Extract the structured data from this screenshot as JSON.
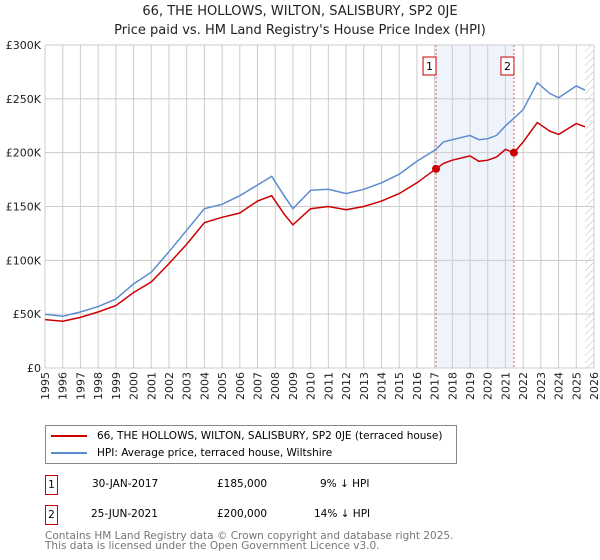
{
  "chart_data": {
    "type": "line",
    "title": "66, THE HOLLOWS, WILTON, SALISBURY, SP2 0JE",
    "subtitle": "Price paid vs. HM Land Registry's House Price Index (HPI)",
    "xlim": [
      1995,
      2026
    ],
    "ylim": [
      0,
      300000
    ],
    "x_ticks": [
      "1995",
      "1996",
      "1997",
      "1998",
      "1999",
      "2000",
      "2001",
      "2002",
      "2003",
      "2004",
      "2005",
      "2006",
      "2007",
      "2008",
      "2009",
      "2010",
      "2011",
      "2012",
      "2013",
      "2014",
      "2015",
      "2016",
      "2017",
      "2018",
      "2019",
      "2020",
      "2021",
      "2022",
      "2023",
      "2024",
      "2025",
      "2026"
    ],
    "y_ticks": [
      {
        "v": 0,
        "label": "£0"
      },
      {
        "v": 50000,
        "label": "£50K"
      },
      {
        "v": 100000,
        "label": "£100K"
      },
      {
        "v": 150000,
        "label": "£150K"
      },
      {
        "v": 200000,
        "label": "£200K"
      },
      {
        "v": 250000,
        "label": "£250K"
      },
      {
        "v": 300000,
        "label": "£300K"
      }
    ],
    "grid": true,
    "series": [
      {
        "name": "66, THE HOLLOWS, WILTON, SALISBURY, SP2 0JE (terraced house)",
        "color": "#cc0000",
        "x": [
          1995,
          1996,
          1997,
          1998,
          1999,
          2000,
          2001,
          2002,
          2003,
          2004,
          2005,
          2006,
          2007,
          2007.8,
          2008.5,
          2009,
          2010,
          2011,
          2012,
          2013,
          2014,
          2015,
          2016,
          2017.08,
          2017.5,
          2018,
          2019,
          2019.5,
          2020,
          2020.5,
          2021,
          2021.48,
          2022,
          2022.8,
          2023.5,
          2024,
          2025,
          2025.5
        ],
        "y": [
          45000,
          43500,
          47000,
          52000,
          58000,
          70000,
          80000,
          97000,
          115000,
          135000,
          140000,
          144000,
          155000,
          160000,
          143000,
          133000,
          148000,
          150000,
          147000,
          150000,
          155000,
          162000,
          172000,
          185000,
          190000,
          193000,
          197000,
          192000,
          193000,
          196000,
          203000,
          200000,
          210000,
          228000,
          220000,
          217000,
          227000,
          224000
        ]
      },
      {
        "name": "HPI: Average price, terraced house, Wiltshire",
        "color": "#5b8bd0",
        "x": [
          1995,
          1996,
          1997,
          1998,
          1999,
          2000,
          2001,
          2002,
          2003,
          2004,
          2005,
          2006,
          2007,
          2007.8,
          2008.5,
          2009,
          2010,
          2011,
          2012,
          2013,
          2014,
          2015,
          2016,
          2017.08,
          2017.5,
          2018,
          2019,
          2019.5,
          2020,
          2020.5,
          2021,
          2021.48,
          2022,
          2022.8,
          2023.5,
          2024,
          2025,
          2025.5
        ],
        "y": [
          50000,
          48000,
          52000,
          57000,
          64000,
          78000,
          89000,
          108000,
          128000,
          148000,
          152000,
          160000,
          170000,
          178000,
          160000,
          148000,
          165000,
          166000,
          162000,
          166000,
          172000,
          180000,
          192000,
          203000,
          210000,
          212000,
          216000,
          212000,
          213000,
          216000,
          225000,
          232000,
          240000,
          265000,
          255000,
          251000,
          262000,
          258000
        ]
      }
    ],
    "annotations": [
      {
        "label": "1",
        "x": 2017.08,
        "y": 185000
      },
      {
        "label": "2",
        "x": 2021.48,
        "y": 200000
      }
    ],
    "shaded_range": [
      2017.08,
      2021.48
    ],
    "hatched_from": 2025.5
  },
  "legend": {
    "items": [
      "66, THE HOLLOWS, WILTON, SALISBURY, SP2 0JE (terraced house)",
      "HPI: Average price, terraced house, Wiltshire"
    ]
  },
  "sales": [
    {
      "num": "1",
      "date": "30-JAN-2017",
      "price": "£185,000",
      "hpi": "9% ↓ HPI"
    },
    {
      "num": "2",
      "date": "25-JUN-2021",
      "price": "£200,000",
      "hpi": "14% ↓ HPI"
    }
  ],
  "footer": {
    "line1": "Contains HM Land Registry data © Crown copyright and database right 2025.",
    "line2": "This data is licensed under the Open Government Licence v3.0."
  }
}
